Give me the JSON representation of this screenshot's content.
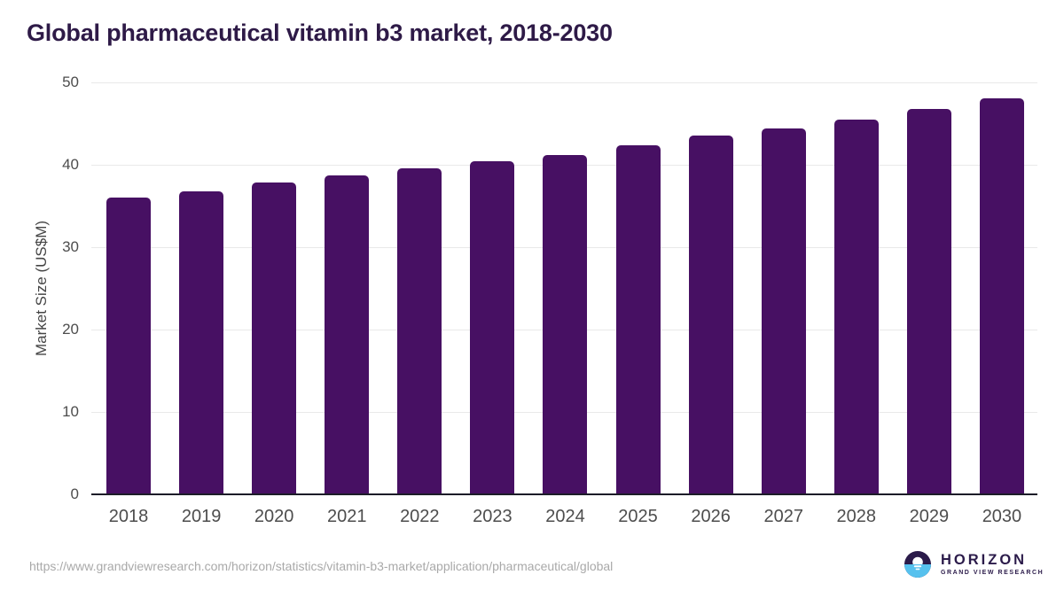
{
  "title": "Global pharmaceutical vitamin b3 market, 2018-2030",
  "chart_data": {
    "type": "bar",
    "categories": [
      "2018",
      "2019",
      "2020",
      "2021",
      "2022",
      "2023",
      "2024",
      "2025",
      "2026",
      "2027",
      "2028",
      "2029",
      "2030"
    ],
    "values": [
      36.0,
      36.8,
      37.8,
      38.7,
      39.6,
      40.4,
      41.2,
      42.4,
      43.5,
      44.4,
      45.5,
      46.8,
      48.1
    ],
    "title": "Global pharmaceutical vitamin b3 market, 2018-2030",
    "xlabel": "",
    "ylabel": "Market Size (US$M)",
    "ylim": [
      0,
      50
    ],
    "yticks": [
      0,
      10,
      20,
      30,
      40,
      50
    ],
    "grid": true,
    "legend": "none",
    "bar_color": "#471063"
  },
  "footer": {
    "source_url": "https://www.grandviewresearch.com/horizon/statistics/vitamin-b3-market/application/pharmaceutical/global",
    "logo": {
      "brand": "HORIZON",
      "sub_brand": "GRAND VIEW RESEARCH"
    }
  },
  "colors": {
    "title": "#2e1a47",
    "bar": "#471063",
    "grid": "#e9e9e9",
    "axis_line": "#1c1c28",
    "tick_label": "#4d4d4d",
    "axis_title": "#454545",
    "url": "#a9a9a9",
    "logo_purple": "#2b1b4a",
    "logo_blue": "#56c1ee"
  }
}
